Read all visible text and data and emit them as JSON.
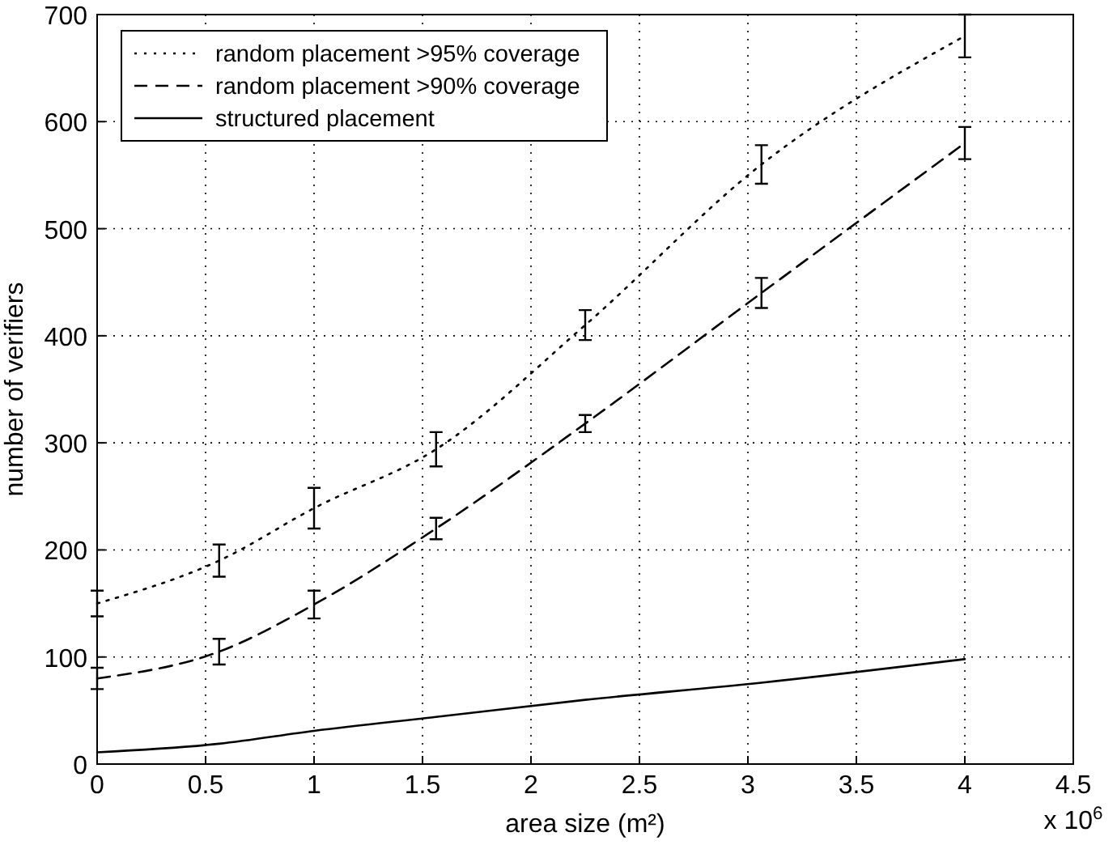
{
  "chart_data": {
    "type": "line",
    "xlabel": "area size (m²)",
    "ylabel": "number of verifiers",
    "x": [
      0,
      0.5625,
      1,
      1.5625,
      2.25,
      3.0625,
      4
    ],
    "series": [
      {
        "name": "random placement >95% coverage",
        "color": "#000000",
        "line_style": "dotted",
        "values": [
          150,
          190,
          239,
          294,
          410,
          560,
          680
        ],
        "errors": [
          12,
          15,
          19,
          16,
          14,
          18,
          20
        ]
      },
      {
        "name": "random placement >90% coverage",
        "color": "#000000",
        "line_style": "dashed",
        "values": [
          80,
          105,
          149,
          220,
          318,
          440,
          580
        ],
        "errors": [
          10,
          12,
          13,
          10,
          8,
          14,
          15
        ]
      },
      {
        "name": "structured placement",
        "color": "#000000",
        "line_style": "solid",
        "values": [
          11,
          19,
          31,
          44,
          60,
          76,
          98
        ]
      }
    ],
    "xlim": [
      0,
      4.5
    ],
    "xticks": [
      0,
      0.5,
      1,
      1.5,
      2,
      2.5,
      3,
      3.5,
      4,
      4.5
    ],
    "ylim": [
      0,
      700
    ],
    "yticks": [
      0,
      100,
      200,
      300,
      400,
      500,
      600,
      700
    ],
    "grid": true,
    "legend": "top left",
    "marker": "none",
    "annotations": [
      "x 10$^{6}$"
    ]
  }
}
